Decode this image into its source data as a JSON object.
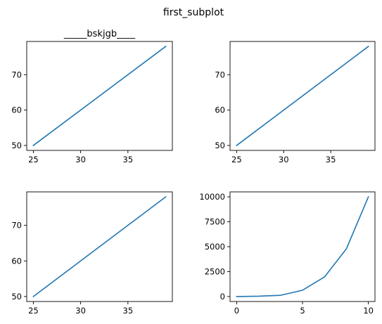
{
  "figure": {
    "suptitle": "first_subplot"
  },
  "chart_data": [
    {
      "type": "line",
      "title": "_____bskjgb____",
      "x": [
        25,
        39
      ],
      "series": [
        {
          "values": [
            50,
            78
          ],
          "color": "#1f77b4"
        }
      ],
      "xlim": [
        24.3,
        39.7
      ],
      "ylim": [
        48.6,
        79.4
      ],
      "xticks": [
        25,
        30,
        35
      ],
      "yticks": [
        50,
        60,
        70
      ],
      "grid": false
    },
    {
      "type": "line",
      "title": "",
      "x": [
        25,
        39
      ],
      "series": [
        {
          "values": [
            50,
            78
          ],
          "color": "#1f77b4"
        }
      ],
      "xlim": [
        24.3,
        39.7
      ],
      "ylim": [
        48.6,
        79.4
      ],
      "xticks": [
        25,
        30,
        35
      ],
      "yticks": [
        50,
        60,
        70
      ],
      "grid": false
    },
    {
      "type": "line",
      "title": "",
      "x": [
        25,
        39
      ],
      "series": [
        {
          "values": [
            50,
            78
          ],
          "color": "#1f77b4"
        }
      ],
      "xlim": [
        24.3,
        39.7
      ],
      "ylim": [
        48.6,
        79.4
      ],
      "xticks": [
        25,
        30,
        35
      ],
      "yticks": [
        50,
        60,
        70
      ],
      "grid": false
    },
    {
      "type": "line",
      "title": "",
      "x": [
        0,
        1.667,
        3.333,
        5,
        6.667,
        8.333,
        10
      ],
      "series": [
        {
          "values": [
            0,
            30,
            125,
            630,
            1960,
            4790,
            10000
          ],
          "color": "#1f77b4"
        }
      ],
      "xlim": [
        -0.5,
        10.5
      ],
      "ylim": [
        -500,
        10500
      ],
      "xticks": [
        0,
        5,
        10
      ],
      "yticks": [
        0,
        2500,
        5000,
        7500,
        10000
      ],
      "grid": false
    }
  ]
}
